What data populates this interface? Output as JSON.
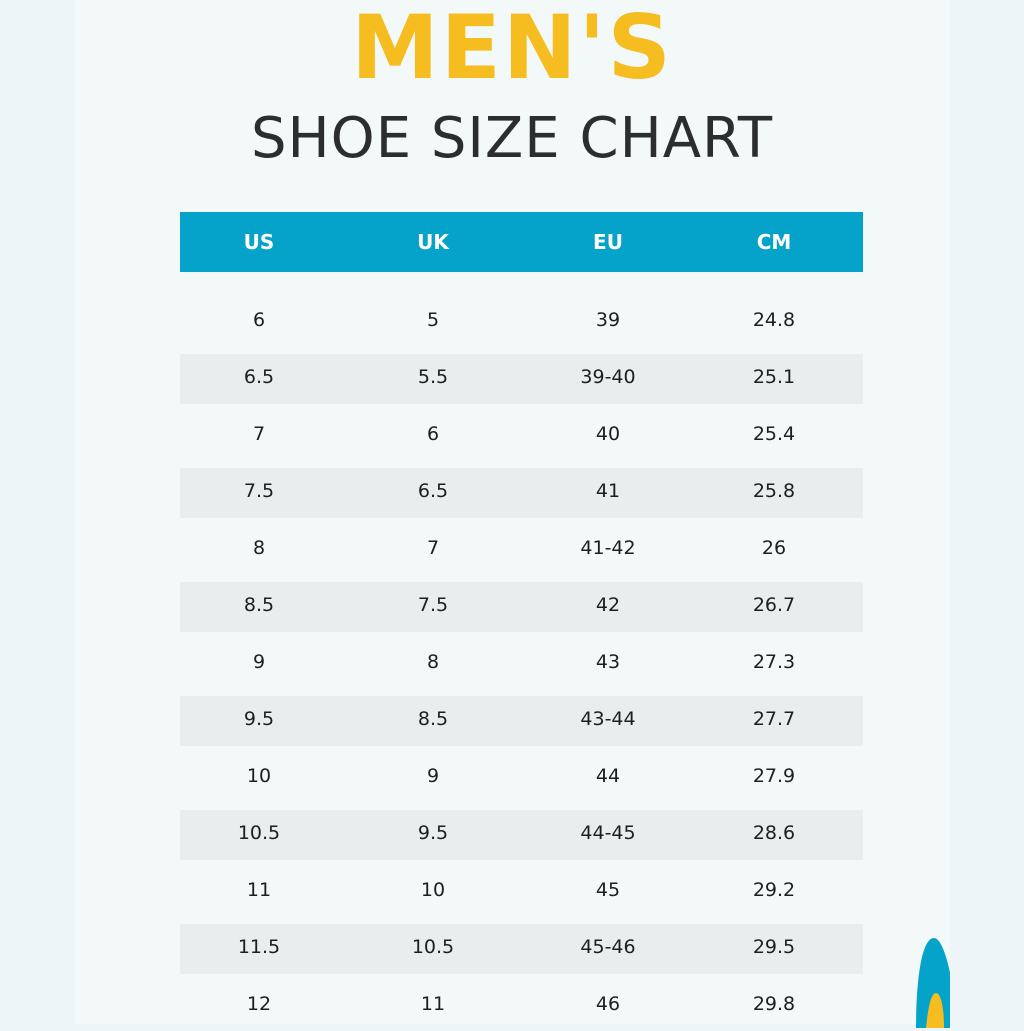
{
  "title": "MEN'S",
  "subtitle": "SHOE SIZE CHART",
  "colors": {
    "accent_yellow": "#f5bd1f",
    "header_blue": "#05a3c9"
  },
  "table": {
    "headers": [
      "US",
      "UK",
      "EU",
      "CM"
    ],
    "rows": [
      [
        "6",
        "5",
        "39",
        "24.8"
      ],
      [
        "6.5",
        "5.5",
        "39-40",
        "25.1"
      ],
      [
        "7",
        "6",
        "40",
        "25.4"
      ],
      [
        "7.5",
        "6.5",
        "41",
        "25.8"
      ],
      [
        "8",
        "7",
        "41-42",
        "26"
      ],
      [
        "8.5",
        "7.5",
        "42",
        "26.7"
      ],
      [
        "9",
        "8",
        "43",
        "27.3"
      ],
      [
        "9.5",
        "8.5",
        "43-44",
        "27.7"
      ],
      [
        "10",
        "9",
        "44",
        "27.9"
      ],
      [
        "10.5",
        "9.5",
        "44-45",
        "28.6"
      ],
      [
        "11",
        "10",
        "45",
        "29.2"
      ],
      [
        "11.5",
        "10.5",
        "45-46",
        "29.5"
      ],
      [
        "12",
        "11",
        "46",
        "29.8"
      ]
    ]
  }
}
